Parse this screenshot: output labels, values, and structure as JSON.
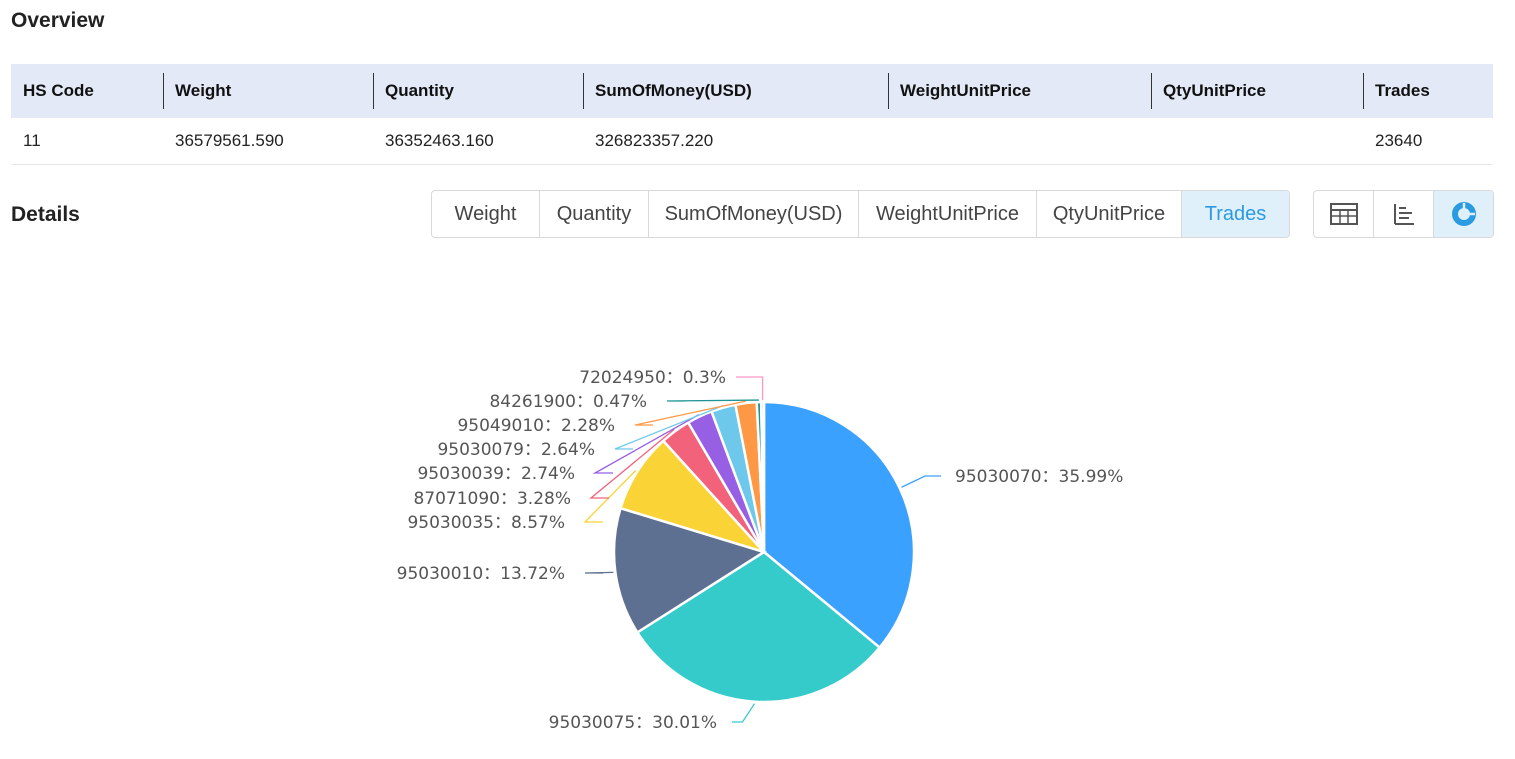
{
  "overview": {
    "title": "Overview",
    "columns": [
      "HS Code",
      "Weight",
      "Quantity",
      "SumOfMoney(USD)",
      "WeightUnitPrice",
      "QtyUnitPrice",
      "Trades"
    ],
    "rows": [
      [
        "11",
        "36579561.590",
        "36352463.160",
        "326823357.220",
        "",
        "",
        "23640"
      ]
    ]
  },
  "details": {
    "title": "Details",
    "metric_tabs": [
      "Weight",
      "Quantity",
      "SumOfMoney(USD)",
      "WeightUnitPrice",
      "QtyUnitPrice",
      "Trades"
    ],
    "active_metric": "Trades",
    "view_buttons": [
      "table-icon",
      "bar-chart-icon",
      "pie-chart-icon"
    ],
    "active_view": "pie-chart-icon"
  },
  "colors": {
    "accent": "#2a9be0",
    "header_bg": "#e4e9f7",
    "active_tab_bg": "#dff0fb"
  },
  "chart_data": {
    "type": "pie",
    "slices": [
      {
        "label": "95030070",
        "value": 35.99,
        "text": "95030070：35.99%",
        "color": "#3ba1ff"
      },
      {
        "label": "95030075",
        "value": 30.01,
        "text": "95030075：30.01%",
        "color": "#36cbcb"
      },
      {
        "label": "95030010",
        "value": 13.72,
        "text": "95030010：13.72%",
        "color": "#5d7092"
      },
      {
        "label": "95030035",
        "value": 8.57,
        "text": "95030035：8.57%",
        "color": "#fad337"
      },
      {
        "label": "87071090",
        "value": 3.28,
        "text": "87071090：3.28%",
        "color": "#f2637b"
      },
      {
        "label": "95030039",
        "value": 2.74,
        "text": "95030039：2.74%",
        "color": "#975fe4"
      },
      {
        "label": "95030079",
        "value": 2.64,
        "text": "95030079：2.64%",
        "color": "#6dc8ec"
      },
      {
        "label": "95049010",
        "value": 2.28,
        "text": "95049010：2.28%",
        "color": "#ff9845"
      },
      {
        "label": "84261900",
        "value": 0.47,
        "text": "84261900：0.47%",
        "color": "#1e9493"
      },
      {
        "label": "72024950",
        "value": 0.3,
        "text": "72024950：0.3%",
        "color": "#ff99c3"
      }
    ]
  }
}
